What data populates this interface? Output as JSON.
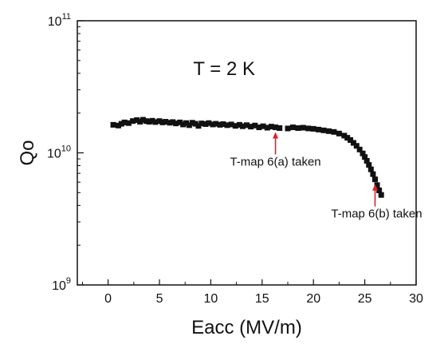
{
  "chart_data": {
    "type": "scatter",
    "title": "T = 2 K",
    "xlabel": "Eacc (MV/m)",
    "ylabel": "Qo",
    "xlim": [
      -3,
      30
    ],
    "ylim": [
      1000000000.0,
      100000000000.0
    ],
    "yscale": "log",
    "grid": false,
    "xticks": [
      0,
      5,
      10,
      15,
      20,
      25,
      30
    ],
    "xtick_labels": [
      "0",
      "5",
      "10",
      "15",
      "20",
      "25",
      "30"
    ],
    "yticks": [
      {
        "value": 1000000000.0,
        "base": "10",
        "exp": "9"
      },
      {
        "value": 10000000000.0,
        "base": "10",
        "exp": "10"
      },
      {
        "value": 100000000000.0,
        "base": "10",
        "exp": "11"
      }
    ],
    "marker_color": "#111111",
    "annotation_color": "#e0202a",
    "series": [
      {
        "points": [
          [
            0.5,
            16300000000.0
          ],
          [
            1.0,
            16100000000.0
          ],
          [
            1.3,
            16600000000.0
          ],
          [
            1.6,
            17000000000.0
          ],
          [
            2.0,
            16800000000.0
          ],
          [
            2.4,
            17400000000.0
          ],
          [
            2.8,
            17700000000.0
          ],
          [
            3.1,
            17200000000.0
          ],
          [
            3.4,
            17800000000.0
          ],
          [
            3.7,
            17400000000.0
          ],
          [
            4.0,
            17200000000.0
          ],
          [
            4.3,
            17500000000.0
          ],
          [
            4.6,
            17100000000.0
          ],
          [
            5.0,
            17400000000.0
          ],
          [
            5.3,
            17000000000.0
          ],
          [
            5.6,
            17200000000.0
          ],
          [
            6.0,
            16900000000.0
          ],
          [
            6.3,
            17100000000.0
          ],
          [
            6.6,
            16700000000.0
          ],
          [
            7.0,
            17000000000.0
          ],
          [
            7.3,
            16400000000.0
          ],
          [
            7.6,
            16800000000.0
          ],
          [
            7.9,
            16200000000.0
          ],
          [
            8.2,
            16900000000.0
          ],
          [
            8.5,
            16600000000.0
          ],
          [
            8.8,
            16000000000.0
          ],
          [
            9.1,
            16700000000.0
          ],
          [
            9.5,
            16500000000.0
          ],
          [
            9.8,
            16800000000.0
          ],
          [
            10.2,
            16400000000.0
          ],
          [
            10.5,
            16600000000.0
          ],
          [
            10.9,
            16300000000.0
          ],
          [
            11.2,
            16500000000.0
          ],
          [
            11.6,
            16200000000.0
          ],
          [
            12.0,
            16400000000.0
          ],
          [
            12.4,
            16000000000.0
          ],
          [
            12.8,
            16300000000.0
          ],
          [
            13.1,
            15900000000.0
          ],
          [
            13.5,
            16200000000.0
          ],
          [
            13.9,
            15800000000.0
          ],
          [
            14.3,
            16100000000.0
          ],
          [
            14.7,
            15600000000.0
          ],
          [
            15.1,
            15900000000.0
          ],
          [
            15.5,
            15500000000.0
          ],
          [
            15.9,
            15800000000.0
          ],
          [
            16.3,
            15600000000.0
          ],
          [
            16.7,
            15400000000.0
          ],
          [
            17.5,
            15300000000.0
          ],
          [
            18.0,
            15600000000.0
          ],
          [
            18.5,
            15400000000.0
          ],
          [
            19.0,
            15500000000.0
          ],
          [
            19.5,
            15300000000.0
          ],
          [
            20.0,
            15200000000.0
          ],
          [
            20.5,
            15000000000.0
          ],
          [
            21.0,
            14800000000.0
          ],
          [
            21.5,
            14600000000.0
          ],
          [
            22.0,
            14400000000.0
          ],
          [
            22.5,
            14000000000.0
          ],
          [
            23.0,
            13500000000.0
          ],
          [
            23.3,
            13000000000.0
          ],
          [
            23.6,
            12500000000.0
          ],
          [
            23.9,
            11900000000.0
          ],
          [
            24.2,
            11300000000.0
          ],
          [
            24.5,
            10600000000.0
          ],
          [
            24.8,
            9900000000.0
          ],
          [
            25.0,
            9300000000.0
          ],
          [
            25.2,
            8700000000.0
          ],
          [
            25.4,
            8100000000.0
          ],
          [
            25.6,
            7500000000.0
          ],
          [
            25.8,
            6900000000.0
          ],
          [
            26.0,
            6300000000.0
          ],
          [
            26.2,
            5700000000.0
          ],
          [
            26.4,
            5200000000.0
          ],
          [
            26.6,
            4800000000.0
          ]
        ]
      }
    ],
    "annotations": [
      {
        "text": "T-map 6(a) taken",
        "x": 16.3,
        "y": 15600000000.0
      },
      {
        "text": "T-map 6(b) taken",
        "x": 26.0,
        "y": 6300000000.0
      }
    ]
  }
}
